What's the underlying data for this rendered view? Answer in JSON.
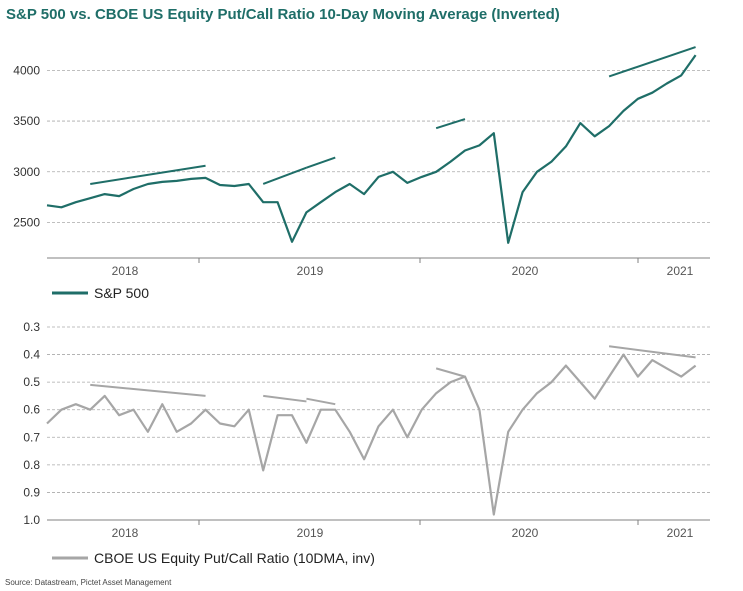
{
  "title": "S&P 500 vs. CBOE US Equity Put/Call Ratio 10-Day Moving Average (Inverted)",
  "source": "Source: Datastream, Pictet Asset Management",
  "colors": {
    "title": "#1f6e68",
    "spx": "#1f6e68",
    "pcr": "#a6a6a6",
    "grid": "#aaaaaa",
    "axis": "#808080"
  },
  "chart_data": [
    {
      "type": "line",
      "grid": "horizontal dashed",
      "legend_position": "bottom-left",
      "x_tick_labels": [
        "2018",
        "2019",
        "2020",
        "2021"
      ],
      "xlim": [
        "2017-07",
        "2021-05"
      ],
      "ylim": [
        2150,
        4250
      ],
      "y_ticks": [
        2500,
        3000,
        3500,
        4000
      ],
      "y_tick_labels": [
        "2500",
        "3000",
        "3500",
        "4000"
      ],
      "series": [
        {
          "name": "S&P 500",
          "x": [
            "2017-07",
            "2017-08",
            "2017-09",
            "2017-10",
            "2017-11",
            "2017-12",
            "2018-01",
            "2018-02",
            "2018-03",
            "2018-04",
            "2018-05",
            "2018-06",
            "2018-07",
            "2018-08",
            "2018-09",
            "2018-10",
            "2018-11",
            "2018-12",
            "2019-01",
            "2019-02",
            "2019-03",
            "2019-04",
            "2019-05",
            "2019-06",
            "2019-07",
            "2019-08",
            "2019-09",
            "2019-10",
            "2019-11",
            "2019-12",
            "2020-01",
            "2020-02",
            "2020-03",
            "2020-04",
            "2020-05",
            "2020-06",
            "2020-07",
            "2020-08",
            "2020-09",
            "2020-10",
            "2020-11",
            "2020-12",
            "2021-01",
            "2021-02",
            "2021-03",
            "2021-04"
          ],
          "values": [
            2670,
            2650,
            2700,
            2740,
            2780,
            2760,
            2830,
            2880,
            2900,
            2910,
            2930,
            2940,
            2870,
            2860,
            2880,
            2700,
            2700,
            2310,
            2600,
            2700,
            2800,
            2880,
            2780,
            2950,
            3000,
            2890,
            2950,
            3000,
            3100,
            3210,
            3260,
            3380,
            2300,
            2800,
            3000,
            3100,
            3250,
            3480,
            3350,
            3450,
            3600,
            3720,
            3780,
            3870,
            3950,
            4150
          ]
        }
      ],
      "trend_lines": [
        {
          "x": [
            "2017-10",
            "2018-06"
          ],
          "y": [
            2880,
            3060
          ]
        },
        {
          "x": [
            "2018-10",
            "2019-01"
          ],
          "y": [
            2880,
            3040
          ]
        },
        {
          "x": [
            "2019-01",
            "2019-03"
          ],
          "y": [
            3040,
            3140
          ]
        },
        {
          "x": [
            "2019-10",
            "2019-12"
          ],
          "y": [
            3430,
            3520
          ]
        },
        {
          "x": [
            "2020-10",
            "2021-04"
          ],
          "y": [
            3940,
            4230
          ]
        }
      ]
    },
    {
      "type": "line",
      "inverted_y": true,
      "grid": "horizontal dashed",
      "legend_position": "bottom-left",
      "x_tick_labels": [
        "2018",
        "2019",
        "2020",
        "2021"
      ],
      "xlim": [
        "2017-07",
        "2021-05"
      ],
      "ylim": [
        0.3,
        1.0
      ],
      "y_ticks": [
        0.3,
        0.4,
        0.5,
        0.6,
        0.7,
        0.8,
        0.9,
        1.0
      ],
      "y_tick_labels": [
        "0.3",
        "0.4",
        "0.5",
        "0.6",
        "0.7",
        "0.8",
        "0.9",
        "1.0"
      ],
      "series": [
        {
          "name": "CBOE US Equity Put/Call Ratio (10DMA, inv)",
          "x": [
            "2017-07",
            "2017-08",
            "2017-09",
            "2017-10",
            "2017-11",
            "2017-12",
            "2018-01",
            "2018-02",
            "2018-03",
            "2018-04",
            "2018-05",
            "2018-06",
            "2018-07",
            "2018-08",
            "2018-09",
            "2018-10",
            "2018-11",
            "2018-12",
            "2019-01",
            "2019-02",
            "2019-03",
            "2019-04",
            "2019-05",
            "2019-06",
            "2019-07",
            "2019-08",
            "2019-09",
            "2019-10",
            "2019-11",
            "2019-12",
            "2020-01",
            "2020-02",
            "2020-03",
            "2020-04",
            "2020-05",
            "2020-06",
            "2020-07",
            "2020-08",
            "2020-09",
            "2020-10",
            "2020-11",
            "2020-12",
            "2021-01",
            "2021-02",
            "2021-03",
            "2021-04"
          ],
          "values": [
            0.65,
            0.6,
            0.58,
            0.6,
            0.55,
            0.62,
            0.6,
            0.68,
            0.58,
            0.68,
            0.65,
            0.6,
            0.65,
            0.66,
            0.6,
            0.82,
            0.62,
            0.62,
            0.72,
            0.6,
            0.6,
            0.68,
            0.78,
            0.66,
            0.6,
            0.7,
            0.6,
            0.54,
            0.5,
            0.48,
            0.6,
            0.98,
            0.68,
            0.6,
            0.54,
            0.5,
            0.44,
            0.5,
            0.56,
            0.48,
            0.4,
            0.48,
            0.42,
            0.45,
            0.48,
            0.44
          ]
        }
      ],
      "trend_lines": [
        {
          "x": [
            "2017-10",
            "2018-06"
          ],
          "y": [
            0.51,
            0.55
          ]
        },
        {
          "x": [
            "2018-10",
            "2019-01"
          ],
          "y": [
            0.55,
            0.57
          ]
        },
        {
          "x": [
            "2019-01",
            "2019-03"
          ],
          "y": [
            0.56,
            0.58
          ]
        },
        {
          "x": [
            "2019-10",
            "2019-12"
          ],
          "y": [
            0.45,
            0.48
          ]
        },
        {
          "x": [
            "2020-10",
            "2021-04"
          ],
          "y": [
            0.37,
            0.41
          ]
        }
      ]
    }
  ]
}
